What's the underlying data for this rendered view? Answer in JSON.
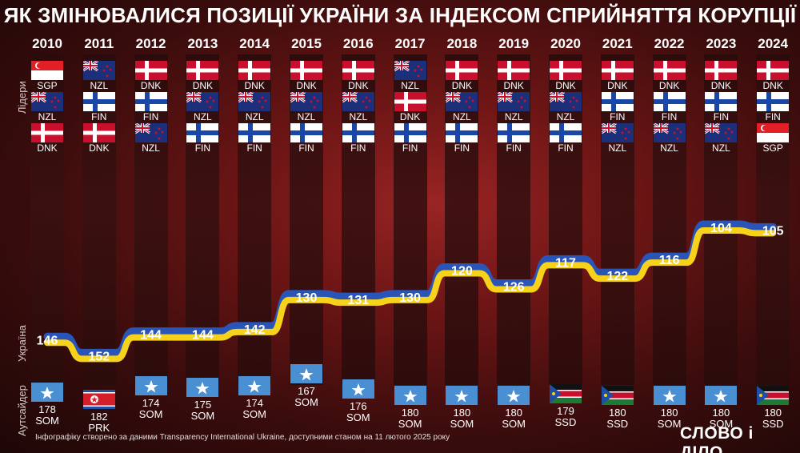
{
  "title": "ЯК ЗМІНЮВАЛИСЯ ПОЗИЦІЇ УКРАЇНИ ЗА ІНДЕКСОМ СПРИЙНЯТТЯ КОРУПЦІЇ",
  "side_labels": {
    "leaders": "Лідери",
    "ukraine": "Україна",
    "outsider": "Аутсайдер"
  },
  "footnote": "Інфографіку створено за даними Transparency International Ukraine, доступними станом на 11 лютого 2025 року",
  "logo": "СЛОВО і ДІЛО",
  "colors": {
    "line_blue": "#2a55b8",
    "line_yellow": "#f6d21a",
    "col_dark": "#2e0c0c"
  },
  "chart_data": {
    "type": "line",
    "title": "ЯК ЗМІНЮВАЛИСЯ ПОЗИЦІЇ УКРАЇНИ ЗА ІНДЕКСОМ СПРИЙНЯТТЯ КОРУПЦІЇ",
    "x": [
      "2010",
      "2011",
      "2012",
      "2013",
      "2014",
      "2015",
      "2016",
      "2017",
      "2018",
      "2019",
      "2020",
      "2021",
      "2022",
      "2023",
      "2024"
    ],
    "series": [
      {
        "values": [
          146,
          152,
          144,
          144,
          142,
          130,
          131,
          130,
          120,
          126,
          117,
          122,
          116,
          104,
          105
        ]
      }
    ],
    "y_inverted": true,
    "leaders": [
      [
        "SGP",
        "NZL",
        "DNK"
      ],
      [
        "NZL",
        "FIN",
        "DNK"
      ],
      [
        "DNK",
        "FIN",
        "NZL"
      ],
      [
        "DNK",
        "NZL",
        "FIN"
      ],
      [
        "DNK",
        "NZL",
        "FIN"
      ],
      [
        "DNK",
        "NZL",
        "FIN"
      ],
      [
        "DNK",
        "NZL",
        "FIN"
      ],
      [
        "NZL",
        "DNK",
        "FIN"
      ],
      [
        "DNK",
        "NZL",
        "FIN"
      ],
      [
        "DNK",
        "NZL",
        "FIN"
      ],
      [
        "DNK",
        "NZL",
        "FIN"
      ],
      [
        "DNK",
        "FIN",
        "NZL"
      ],
      [
        "DNK",
        "FIN",
        "NZL"
      ],
      [
        "DNK",
        "FIN",
        "NZL"
      ],
      [
        "DNK",
        "FIN",
        "SGP"
      ]
    ],
    "outsiders": [
      {
        "rank": "178",
        "code": "SOM"
      },
      {
        "rank": "182",
        "code": "PRK"
      },
      {
        "rank": "174",
        "code": "SOM"
      },
      {
        "rank": "175",
        "code": "SOM"
      },
      {
        "rank": "174",
        "code": "SOM"
      },
      {
        "rank": "167",
        "code": "SOM"
      },
      {
        "rank": "176",
        "code": "SOM"
      },
      {
        "rank": "180",
        "code": "SOM"
      },
      {
        "rank": "180",
        "code": "SOM"
      },
      {
        "rank": "180",
        "code": "SOM"
      },
      {
        "rank": "179",
        "code": "SSD"
      },
      {
        "rank": "180",
        "code": "SSD"
      },
      {
        "rank": "180",
        "code": "SOM"
      },
      {
        "rank": "180",
        "code": "SOM"
      },
      {
        "rank": "180",
        "code": "SSD"
      }
    ]
  }
}
